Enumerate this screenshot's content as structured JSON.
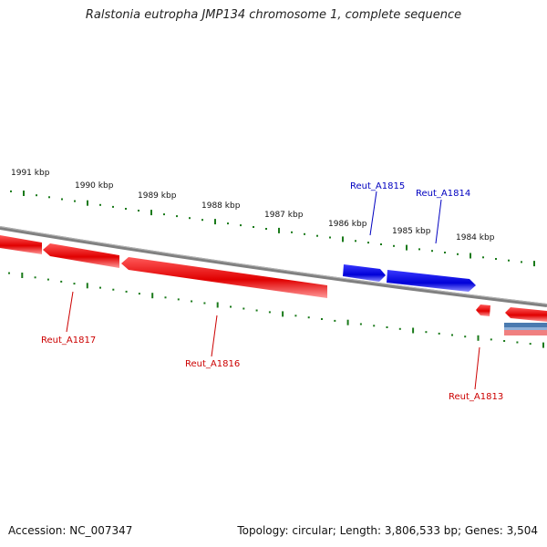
{
  "title": "Ralstonia eutropha JMP134 chromosome 1, complete sequence",
  "accession": "Accession: NC_007347",
  "summary": "Topology: circular; Length: 3,806,533 bp; Genes: 3,504",
  "colors": {
    "forward_gene": "#0000e0",
    "reverse_gene": "#e00000",
    "backbone": "#808080",
    "tick": "#1a7a1a",
    "forward_label": "#0000c0",
    "reverse_label": "#cc0000"
  },
  "scale_labels": [
    "1991 kbp",
    "1990 kbp",
    "1989 kbp",
    "1988 kbp",
    "1987 kbp",
    "1986 kbp",
    "1985 kbp",
    "1984 kbp"
  ],
  "genes": [
    {
      "id": "Reut_A1815",
      "strand": "forward"
    },
    {
      "id": "Reut_A1814",
      "strand": "forward"
    },
    {
      "id": "Reut_A1817",
      "strand": "reverse"
    },
    {
      "id": "Reut_A1816",
      "strand": "reverse"
    },
    {
      "id": "Reut_A1813",
      "strand": "reverse"
    }
  ]
}
